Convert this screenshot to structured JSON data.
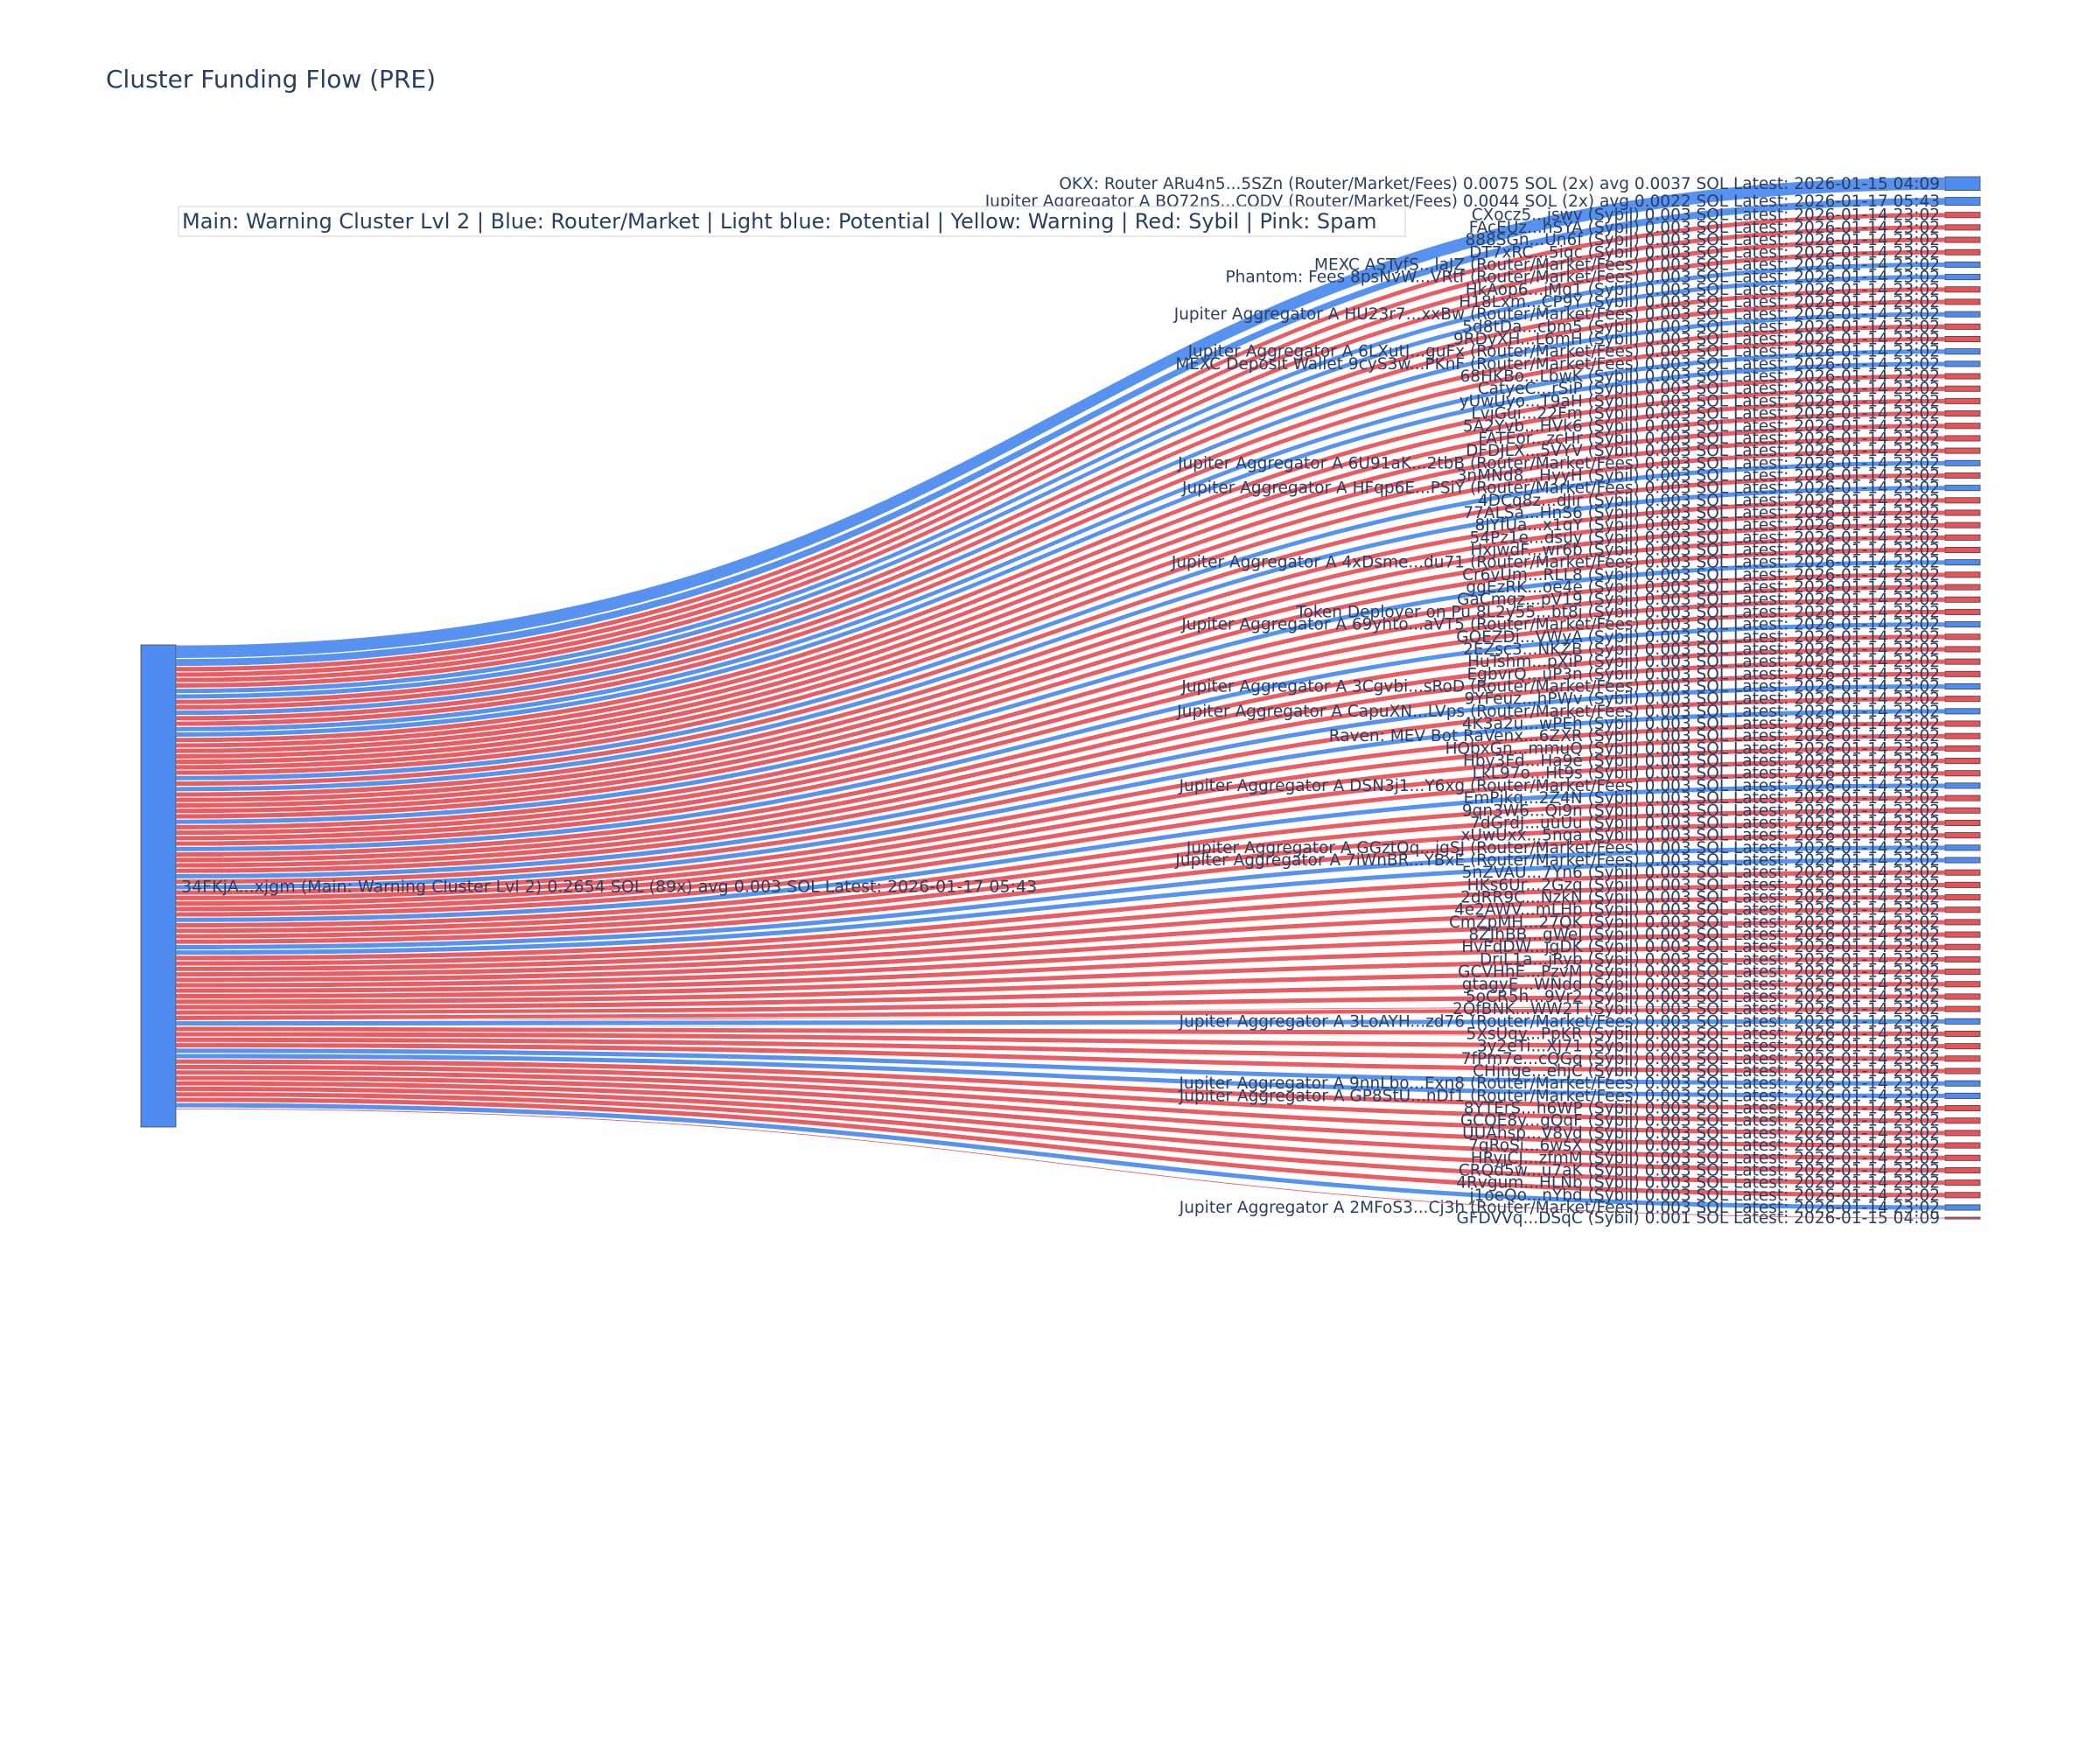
{
  "colors": {
    "router": "#4f8cf0",
    "sybil": "#e8535a",
    "warning": "#f5c542",
    "potential": "#9cc3ff",
    "spam": "#f58cc8",
    "source_node": "#4f8cf0",
    "text": "#2a3f5f"
  },
  "chart_data": {
    "type": "sankey",
    "title": "Cluster Funding Flow (PRE)",
    "legend_text": "Main: Warning Cluster Lvl 2  |  Blue: Router/Market | Light blue: Potential | Yellow: Warning | Red: Sybil | Pink: Spam",
    "source": {
      "label": "34FKjA...xjgm (Main: Warning Cluster Lvl 2) 0.2654 SOL (89x) avg 0.003 SOL Latest: 2026-01-17 05:43",
      "value": 0.2654
    },
    "targets": [
      {
        "label": "OKX: Router ARu4n5...5SZn (Router/Market/Fees) 0.0075 SOL (2x) avg 0.0037 SOL Latest: 2026-01-15 04:09",
        "value": 0.0075,
        "category": "router"
      },
      {
        "label": "Jupiter Aggregator A BQ72nS...CQDV (Router/Market/Fees) 0.0044 SOL (2x) avg 0.0022 SOL Latest: 2026-01-17 05:43",
        "value": 0.0044,
        "category": "router"
      },
      {
        "label": "CXocz5...jswv (Sybil) 0.003 SOL Latest: 2026-01-14 23:02",
        "value": 0.003,
        "category": "sybil"
      },
      {
        "label": "FAcEUz...hSYA (Sybil) 0.003 SOL Latest: 2026-01-14 23:02",
        "value": 0.003,
        "category": "sybil"
      },
      {
        "label": "888SGn...Un6f (Sybil) 0.003 SOL Latest: 2026-01-14 23:02",
        "value": 0.003,
        "category": "sybil"
      },
      {
        "label": "DT7xRC...5iqc (Sybil) 0.003 SOL Latest: 2026-01-14 23:02",
        "value": 0.003,
        "category": "sybil"
      },
      {
        "label": "MEXC ASTyfS...laJZ (Router/Market/Fees) 0.003 SOL Latest: 2026-01-14 23:02",
        "value": 0.003,
        "category": "router"
      },
      {
        "label": "Phantom: Fees 8psNvW...VRtf (Router/Market/Fees) 0.003 SOL Latest: 2026-01-14 23:02",
        "value": 0.003,
        "category": "router"
      },
      {
        "label": "HkAop6...jMq1 (Sybil) 0.003 SOL Latest: 2026-01-14 23:02",
        "value": 0.003,
        "category": "sybil"
      },
      {
        "label": "H18Lxm...CP9Y (Sybil) 0.003 SOL Latest: 2026-01-14 23:02",
        "value": 0.003,
        "category": "sybil"
      },
      {
        "label": "Jupiter Aggregator A HU23r7...xxBw (Router/Market/Fees) 0.003 SOL Latest: 2026-01-14 23:02",
        "value": 0.003,
        "category": "router"
      },
      {
        "label": "5d8tDa...cbm5 (Sybil) 0.003 SOL Latest: 2026-01-14 23:02",
        "value": 0.003,
        "category": "sybil"
      },
      {
        "label": "9RDyXH...L6mH (Sybil) 0.003 SOL Latest: 2026-01-14 23:02",
        "value": 0.003,
        "category": "sybil"
      },
      {
        "label": "Jupiter Aggregator A 6LXutJ...guFx (Router/Market/Fees) 0.003 SOL Latest: 2026-01-14 23:02",
        "value": 0.003,
        "category": "router"
      },
      {
        "label": "MEXC Deposit Wallet 9cyS3w...PKnF (Router/Market/Fees) 0.003 SOL Latest: 2026-01-14 23:02",
        "value": 0.003,
        "category": "router"
      },
      {
        "label": "68HKBo...LbwK (Sybil) 0.003 SOL Latest: 2026-01-14 23:02",
        "value": 0.003,
        "category": "sybil"
      },
      {
        "label": "CatyeC...rSiP (Sybil) 0.003 SOL Latest: 2026-01-14 23:02",
        "value": 0.003,
        "category": "sybil"
      },
      {
        "label": "yUwUyo...T9aH (Sybil) 0.003 SOL Latest: 2026-01-14 23:02",
        "value": 0.003,
        "category": "sybil"
      },
      {
        "label": "LvjGui...22Fm (Sybil) 0.003 SOL Latest: 2026-01-14 23:02",
        "value": 0.003,
        "category": "sybil"
      },
      {
        "label": "5A2Yvb...HVk6 (Sybil) 0.003 SOL Latest: 2026-01-14 23:02",
        "value": 0.003,
        "category": "sybil"
      },
      {
        "label": "FATEor...zcHr (Sybil) 0.003 SOL Latest: 2026-01-14 23:02",
        "value": 0.003,
        "category": "sybil"
      },
      {
        "label": "DFDJLX...5VYV (Sybil) 0.003 SOL Latest: 2026-01-14 23:02",
        "value": 0.003,
        "category": "sybil"
      },
      {
        "label": "Jupiter Aggregator A 6U91aK...2tbB (Router/Market/Fees) 0.003 SOL Latest: 2026-01-14 23:02",
        "value": 0.003,
        "category": "router"
      },
      {
        "label": "3nMNd8...HyyH (Sybil) 0.003 SOL Latest: 2026-01-14 23:02",
        "value": 0.003,
        "category": "sybil"
      },
      {
        "label": "Jupiter Aggregator A HFqp6E...PSiY (Router/Market/Fees) 0.003 SOL Latest: 2026-01-14 23:02",
        "value": 0.003,
        "category": "router"
      },
      {
        "label": "4DCq8z...dJir (Sybil) 0.003 SOL Latest: 2026-01-14 23:02",
        "value": 0.003,
        "category": "sybil"
      },
      {
        "label": "77ALSa...HnS6 (Sybil) 0.003 SOL Latest: 2026-01-14 23:02",
        "value": 0.003,
        "category": "sybil"
      },
      {
        "label": "8JYfUa...x1qY (Sybil) 0.003 SOL Latest: 2026-01-14 23:02",
        "value": 0.003,
        "category": "sybil"
      },
      {
        "label": "54Pz1e...dsuy (Sybil) 0.003 SOL Latest: 2026-01-14 23:02",
        "value": 0.003,
        "category": "sybil"
      },
      {
        "label": "HxjwdF...wr6b (Sybil) 0.003 SOL Latest: 2026-01-14 23:02",
        "value": 0.003,
        "category": "sybil"
      },
      {
        "label": "Jupiter Aggregator A 4xDsme...du71 (Router/Market/Fees) 0.003 SOL Latest: 2026-01-14 23:02",
        "value": 0.003,
        "category": "router"
      },
      {
        "label": "Cr6vUm...RLL8 (Sybil) 0.003 SOL Latest: 2026-01-14 23:02",
        "value": 0.003,
        "category": "sybil"
      },
      {
        "label": "ggEzRK...oe4e (Sybil) 0.003 SOL Latest: 2026-01-14 23:02",
        "value": 0.003,
        "category": "sybil"
      },
      {
        "label": "GaCmqz...pV19 (Sybil) 0.003 SOL Latest: 2026-01-14 23:02",
        "value": 0.003,
        "category": "sybil"
      },
      {
        "label": "Token Deployer on Pu 8L2y55...bt8j (Sybil) 0.003 SOL Latest: 2026-01-14 23:02",
        "value": 0.003,
        "category": "sybil"
      },
      {
        "label": "Jupiter Aggregator A 69yhto...aVT5 (Router/Market/Fees) 0.003 SOL Latest: 2026-01-14 23:02",
        "value": 0.003,
        "category": "router"
      },
      {
        "label": "GQEZDi...VWyA (Sybil) 0.003 SOL Latest: 2026-01-14 23:02",
        "value": 0.003,
        "category": "sybil"
      },
      {
        "label": "2EZsc3...NKZB (Sybil) 0.003 SOL Latest: 2026-01-14 23:02",
        "value": 0.003,
        "category": "sybil"
      },
      {
        "label": "HuTshm...pXiP (Sybil) 0.003 SOL Latest: 2026-01-14 23:02",
        "value": 0.003,
        "category": "sybil"
      },
      {
        "label": "EgbvrQ...uP3n (Sybil) 0.003 SOL Latest: 2026-01-14 23:02",
        "value": 0.003,
        "category": "sybil"
      },
      {
        "label": "Jupiter Aggregator A 3Cgvbi...sRoD (Router/Market/Fees) 0.003 SOL Latest: 2026-01-14 23:02",
        "value": 0.003,
        "category": "router"
      },
      {
        "label": "9YFeuz...hPWv (Sybil) 0.003 SOL Latest: 2026-01-14 23:02",
        "value": 0.003,
        "category": "sybil"
      },
      {
        "label": "Jupiter Aggregator A CapuXN...LVps (Router/Market/Fees) 0.003 SOL Latest: 2026-01-14 23:02",
        "value": 0.003,
        "category": "router"
      },
      {
        "label": "4K3a2u...wPEh (Sybil) 0.003 SOL Latest: 2026-01-14 23:02",
        "value": 0.003,
        "category": "sybil"
      },
      {
        "label": "Raven: MEV Bot RaVenx...6ZXR (Sybil) 0.003 SOL Latest: 2026-01-14 23:02",
        "value": 0.003,
        "category": "sybil"
      },
      {
        "label": "HQbxGn...mmuQ (Sybil) 0.003 SOL Latest: 2026-01-14 23:02",
        "value": 0.003,
        "category": "sybil"
      },
      {
        "label": "Hby3Fd...Ha9e (Sybil) 0.003 SOL Latest: 2026-01-14 23:02",
        "value": 0.003,
        "category": "sybil"
      },
      {
        "label": "LkL97o...Ht9s (Sybil) 0.003 SOL Latest: 2026-01-14 23:02",
        "value": 0.003,
        "category": "sybil"
      },
      {
        "label": "Jupiter Aggregator A DSN3j1...Y6xg (Router/Market/Fees) 0.003 SOL Latest: 2026-01-14 23:02",
        "value": 0.003,
        "category": "router"
      },
      {
        "label": "EmPjkq...2Z4N (Sybil) 0.003 SOL Latest: 2026-01-14 23:02",
        "value": 0.003,
        "category": "sybil"
      },
      {
        "label": "9qn3W6...Qi9n (Sybil) 0.003 SOL Latest: 2026-01-14 23:02",
        "value": 0.003,
        "category": "sybil"
      },
      {
        "label": "7dGrdJ...uuUu (Sybil) 0.003 SOL Latest: 2026-01-14 23:02",
        "value": 0.003,
        "category": "sybil"
      },
      {
        "label": "xUwUxx...5nqa (Sybil) 0.003 SOL Latest: 2026-01-14 23:02",
        "value": 0.003,
        "category": "sybil"
      },
      {
        "label": "Jupiter Aggregator A GGztQq...jgSJ (Router/Market/Fees) 0.003 SOL Latest: 2026-01-14 23:02",
        "value": 0.003,
        "category": "router"
      },
      {
        "label": "Jupiter Aggregator A 7iWnBR...YBxE (Router/Market/Fees) 0.003 SOL Latest: 2026-01-14 23:02",
        "value": 0.003,
        "category": "router"
      },
      {
        "label": "5nZVAU...7Yn6 (Sybil) 0.003 SOL Latest: 2026-01-14 23:02",
        "value": 0.003,
        "category": "sybil"
      },
      {
        "label": "HKs6Ur...2Gzq (Sybil) 0.003 SOL Latest: 2026-01-14 23:02",
        "value": 0.003,
        "category": "sybil"
      },
      {
        "label": "2dRR9C...NzkN (Sybil) 0.003 SOL Latest: 2026-01-14 23:02",
        "value": 0.003,
        "category": "sybil"
      },
      {
        "label": "4e2AWV...mLHb (Sybil) 0.003 SOL Latest: 2026-01-14 23:02",
        "value": 0.003,
        "category": "sybil"
      },
      {
        "label": "CmZpMH...27QK (Sybil) 0.003 SOL Latest: 2026-01-14 23:02",
        "value": 0.003,
        "category": "sybil"
      },
      {
        "label": "8ZJhBB...gWeJ (Sybil) 0.003 SOL Latest: 2026-01-14 23:02",
        "value": 0.003,
        "category": "sybil"
      },
      {
        "label": "HvFdDW...jgDK (Sybil) 0.003 SOL Latest: 2026-01-14 23:02",
        "value": 0.003,
        "category": "sybil"
      },
      {
        "label": "DriL1a...jRyb (Sybil) 0.003 SOL Latest: 2026-01-14 23:02",
        "value": 0.003,
        "category": "sybil"
      },
      {
        "label": "GCVHhE...PzvM (Sybil) 0.003 SOL Latest: 2026-01-14 23:02",
        "value": 0.003,
        "category": "sybil"
      },
      {
        "label": "gtagyE...WNdd (Sybil) 0.003 SOL Latest: 2026-01-14 23:02",
        "value": 0.003,
        "category": "sybil"
      },
      {
        "label": "5oCR5h...9Vr2 (Sybil) 0.003 SOL Latest: 2026-01-14 23:02",
        "value": 0.003,
        "category": "sybil"
      },
      {
        "label": "2QfBNK...WW2T (Sybil) 0.003 SOL Latest: 2026-01-14 23:02",
        "value": 0.003,
        "category": "sybil"
      },
      {
        "label": "Jupiter Aggregator A 3LoAYH...zd76 (Router/Market/Fees) 0.003 SOL Latest: 2026-01-14 23:02",
        "value": 0.003,
        "category": "router"
      },
      {
        "label": "5XsUqy...PpKR (Sybil) 0.003 SOL Latest: 2026-01-14 23:02",
        "value": 0.003,
        "category": "sybil"
      },
      {
        "label": "3y2eTi...XJ71 (Sybil) 0.003 SOL Latest: 2026-01-14 23:02",
        "value": 0.003,
        "category": "sybil"
      },
      {
        "label": "7fPm7e...cQGq (Sybil) 0.003 SOL Latest: 2026-01-14 23:02",
        "value": 0.003,
        "category": "sybil"
      },
      {
        "label": "CHjnge...ehjC (Sybil) 0.003 SOL Latest: 2026-01-14 23:02",
        "value": 0.003,
        "category": "sybil"
      },
      {
        "label": "Jupiter Aggregator A 9nnLbo...Exn8 (Router/Market/Fees) 0.003 SOL Latest: 2026-01-14 23:02",
        "value": 0.003,
        "category": "router"
      },
      {
        "label": "Jupiter Aggregator A GP8StU...nDf1 (Router/Market/Fees) 0.003 SOL Latest: 2026-01-14 23:02",
        "value": 0.003,
        "category": "router"
      },
      {
        "label": "8YTErS...h6WP (Sybil) 0.003 SOL Latest: 2026-01-14 23:02",
        "value": 0.003,
        "category": "sybil"
      },
      {
        "label": "GCQE8y...gQqF (Sybil) 0.003 SOL Latest: 2026-01-14 23:02",
        "value": 0.003,
        "category": "sybil"
      },
      {
        "label": "UUAhsp...V8yd (Sybil) 0.003 SOL Latest: 2026-01-14 23:02",
        "value": 0.003,
        "category": "sybil"
      },
      {
        "label": "7qRoSi...6wsX (Sybil) 0.003 SOL Latest: 2026-01-14 23:02",
        "value": 0.003,
        "category": "sybil"
      },
      {
        "label": "HRyjCJ...zfmM (Sybil) 0.003 SOL Latest: 2026-01-14 23:02",
        "value": 0.003,
        "category": "sybil"
      },
      {
        "label": "CRQd5w...u7aK (Sybil) 0.003 SOL Latest: 2026-01-14 23:02",
        "value": 0.003,
        "category": "sybil"
      },
      {
        "label": "4Rvgum...HLNb (Sybil) 0.003 SOL Latest: 2026-01-14 23:02",
        "value": 0.003,
        "category": "sybil"
      },
      {
        "label": "j1oeQo...nYbd (Sybil) 0.003 SOL Latest: 2026-01-14 23:02",
        "value": 0.003,
        "category": "sybil"
      },
      {
        "label": "Jupiter Aggregator A 2MFoS3...Cj3h (Router/Market/Fees) 0.003 SOL Latest: 2026-01-14 23:02",
        "value": 0.003,
        "category": "router"
      },
      {
        "label": "GFDVVq...DSqC (Sybil) 0.001 SOL Latest: 2026-01-15 04:09",
        "value": 0.001,
        "category": "sybil"
      }
    ]
  }
}
